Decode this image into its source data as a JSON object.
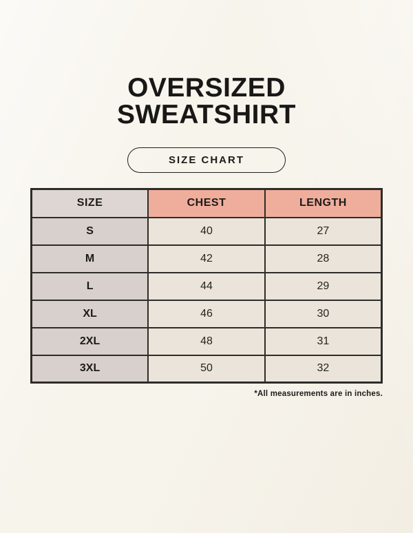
{
  "page": {
    "title_line1": "OVERSIZED",
    "title_line2": "SWEATSHIRT",
    "size_chart_button_label": "SIZE CHART",
    "footnote": "*All measurements are in inches."
  },
  "table": {
    "headers": [
      "SIZE",
      "CHEST",
      "LENGTH"
    ],
    "rows": [
      {
        "size": "S",
        "chest": "40",
        "length": "27"
      },
      {
        "size": "M",
        "chest": "42",
        "length": "28"
      },
      {
        "size": "L",
        "chest": "44",
        "length": "29"
      },
      {
        "size": "XL",
        "chest": "46",
        "length": "30"
      },
      {
        "size": "2XL",
        "chest": "48",
        "length": "31"
      },
      {
        "size": "3XL",
        "chest": "50",
        "length": "32"
      }
    ]
  },
  "colors": {
    "page_background": "#F7F4EC",
    "header_size_bg": "#DED6D2",
    "header_accent_bg": "#EFAD9B",
    "size_column_bg": "#D8D0CC",
    "value_cell_bg": "#EAE4DA",
    "table_border": "#2E2C28",
    "text": "#1C1B19"
  },
  "chart_data": {
    "type": "table",
    "title": "OVERSIZED SWEATSHIRT — SIZE CHART",
    "columns": [
      "SIZE",
      "CHEST",
      "LENGTH"
    ],
    "rows": [
      [
        "S",
        40,
        27
      ],
      [
        "M",
        42,
        28
      ],
      [
        "L",
        44,
        29
      ],
      [
        "XL",
        46,
        30
      ],
      [
        "2XL",
        48,
        31
      ],
      [
        "3XL",
        50,
        32
      ]
    ],
    "units": "inches",
    "note": "*All measurements are in inches."
  }
}
